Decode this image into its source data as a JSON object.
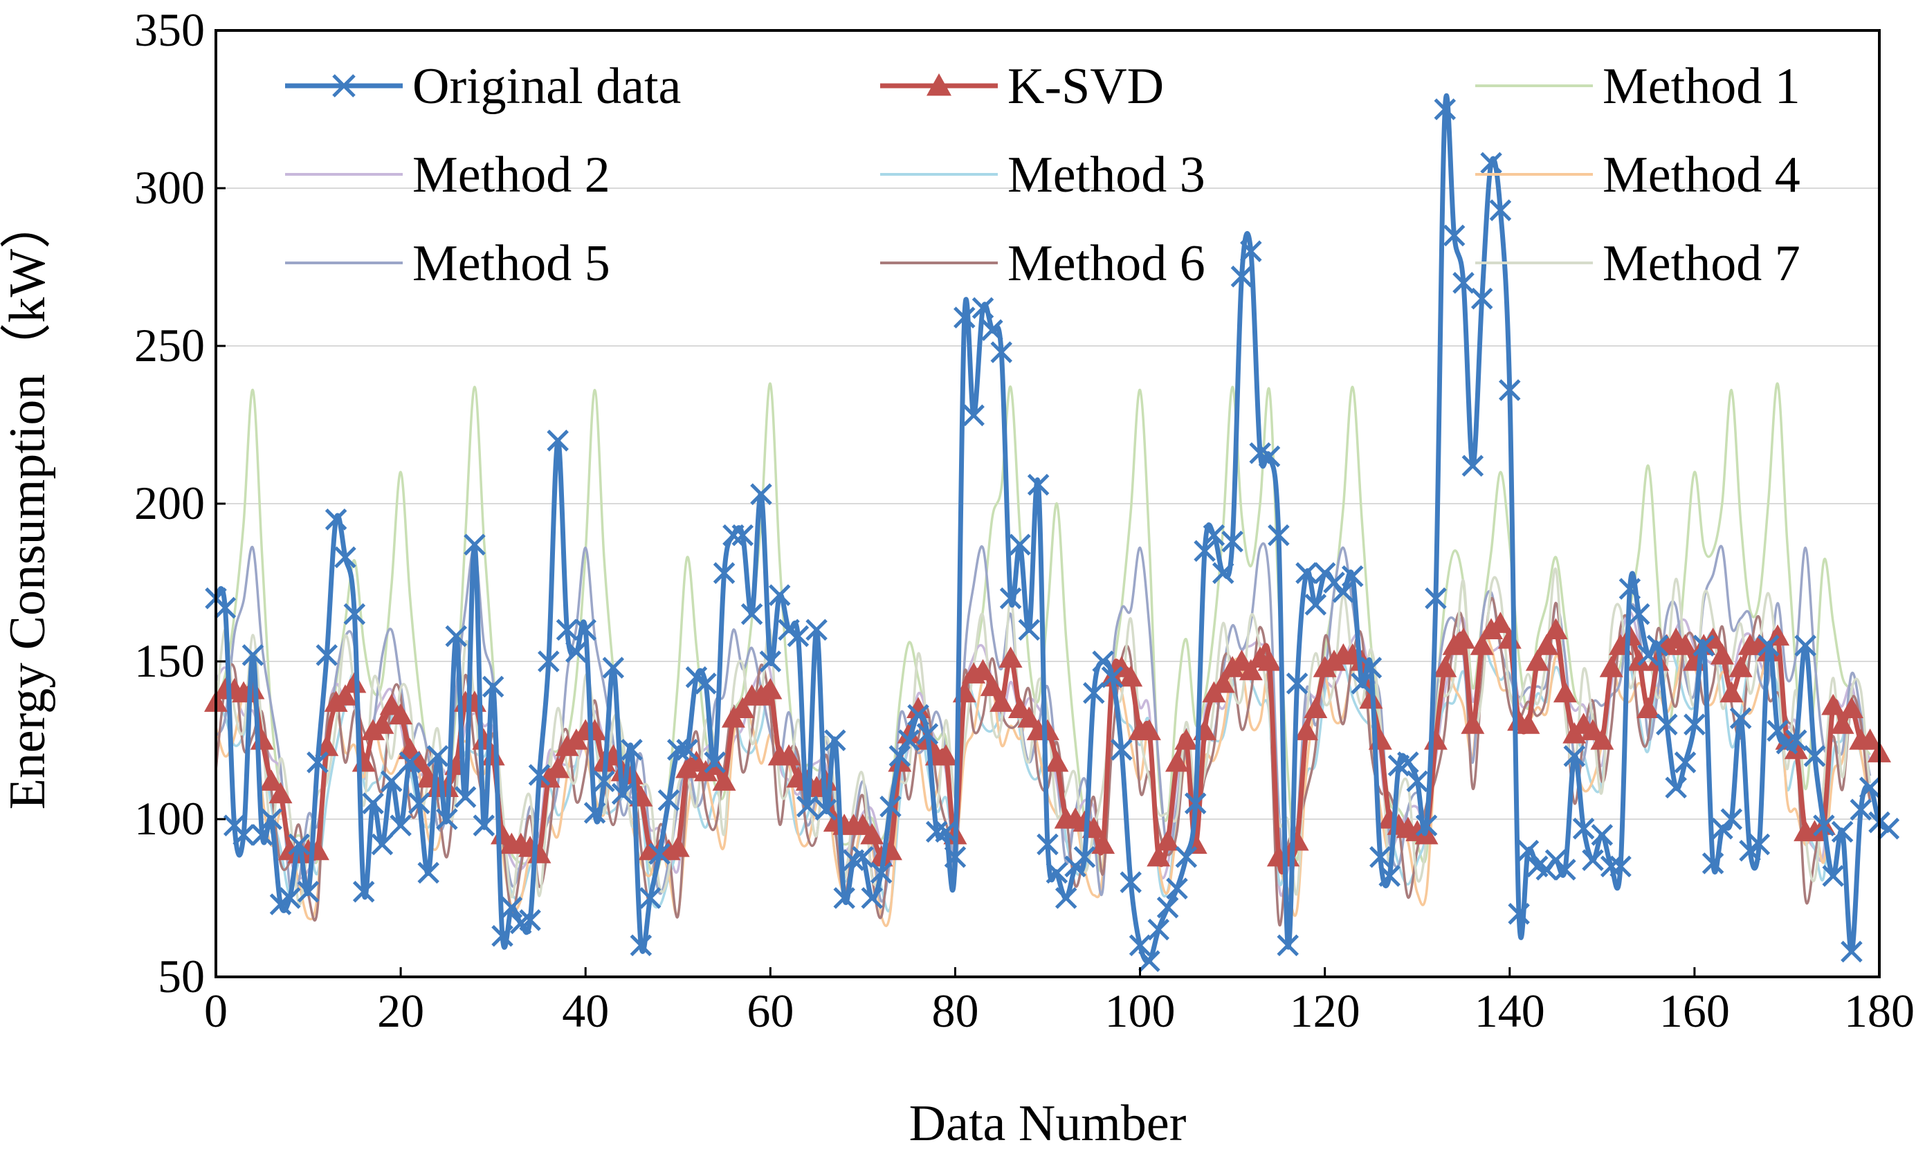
{
  "chart_data": {
    "type": "line",
    "title": "",
    "xlabel": "Data Number",
    "ylabel": "Energy Consumption（kW）",
    "xlim": [
      0,
      180
    ],
    "ylim": [
      50,
      350
    ],
    "xticks": [
      "0",
      "20",
      "40",
      "60",
      "80",
      "100",
      "120",
      "140",
      "160",
      "180"
    ],
    "yticks": [
      "50",
      "100",
      "150",
      "200",
      "250",
      "300",
      "350"
    ],
    "grid": "horizontal",
    "legend_position": "top, 3 columns",
    "series": [
      {
        "name": "Original data",
        "color": "#3f7cc0",
        "marker": "x",
        "values": [
          170,
          167,
          98,
          95,
          152,
          95,
          100,
          73,
          75,
          92,
          77,
          118,
          152,
          195,
          183,
          165,
          77,
          105,
          92,
          112,
          98,
          118,
          105,
          83,
          120,
          100,
          158,
          107,
          187,
          98,
          142,
          63,
          72,
          67,
          68,
          114,
          150,
          220,
          160,
          153,
          160,
          102,
          112,
          148,
          108,
          122,
          60,
          75,
          89,
          106,
          122,
          122,
          145,
          143,
          118,
          178,
          190,
          190,
          165,
          203,
          150,
          171,
          160,
          158,
          104,
          160,
          103,
          125,
          75,
          87,
          88,
          75,
          83,
          104,
          120,
          125,
          133,
          127,
          96,
          96,
          88,
          259,
          228,
          262,
          255,
          248,
          170,
          187,
          160,
          206,
          92,
          83,
          75,
          85,
          88,
          140,
          150,
          145,
          122,
          80,
          60,
          55,
          65,
          72,
          78,
          88,
          105,
          185,
          190,
          178,
          188,
          272,
          280,
          216,
          215,
          190,
          60,
          143,
          178,
          168,
          178,
          175,
          172,
          177,
          143,
          148,
          88,
          82,
          117,
          118,
          112,
          98,
          170,
          325,
          285,
          270,
          212,
          265,
          308,
          293,
          236,
          70,
          90,
          85,
          84,
          87,
          84,
          120,
          97,
          87,
          95,
          85,
          85,
          173,
          165,
          152,
          155,
          130,
          110,
          118,
          130,
          155,
          86,
          97,
          100,
          132,
          90,
          92,
          155,
          128,
          124,
          125,
          155,
          120,
          98,
          82,
          96,
          58,
          103,
          110,
          99,
          97
        ]
      },
      {
        "name": "K-SVD",
        "color": "#c0504d",
        "marker": "triangle",
        "values": [
          137,
          141,
          141,
          140,
          141,
          125,
          112,
          108,
          90,
          89,
          90,
          90,
          123,
          137,
          139,
          143,
          118,
          128,
          130,
          136,
          133,
          122,
          118,
          113,
          110,
          110,
          117,
          137,
          137,
          125,
          120,
          95,
          92,
          92,
          91,
          89,
          113,
          116,
          123,
          125,
          128,
          128,
          118,
          120,
          115,
          114,
          107,
          90,
          90,
          90,
          91,
          116,
          118,
          115,
          117,
          112,
          132,
          135,
          139,
          139,
          141,
          120,
          120,
          113,
          112,
          110,
          112,
          99,
          98,
          98,
          98,
          95,
          88,
          90,
          118,
          127,
          135,
          125,
          120,
          120,
          95,
          140,
          146,
          147,
          142,
          137,
          151,
          135,
          132,
          128,
          128,
          118,
          100,
          100,
          99,
          97,
          92,
          145,
          148,
          145,
          128,
          128,
          88,
          93,
          118,
          125,
          92,
          128,
          140,
          143,
          148,
          150,
          147,
          151,
          150,
          88,
          88,
          93,
          128,
          135,
          148,
          150,
          152,
          152,
          150,
          138,
          125,
          100,
          98,
          97,
          96,
          95,
          125,
          148,
          155,
          157,
          130,
          155,
          160,
          162,
          157,
          131,
          130,
          150,
          155,
          160,
          140,
          127,
          130,
          128,
          125,
          148,
          155,
          158,
          150,
          135,
          150,
          155,
          157,
          155,
          150,
          155,
          157,
          152,
          140,
          148,
          155,
          155,
          153,
          158,
          125,
          122,
          96,
          96,
          98,
          136,
          130,
          135,
          125,
          125,
          121
        ]
      },
      {
        "name": "Method 1",
        "color": "#c9dfb4",
        "peaks": [
          [
            4,
            236
          ],
          [
            15,
            182
          ],
          [
            20,
            210
          ],
          [
            28,
            237
          ],
          [
            41,
            236
          ],
          [
            51,
            183
          ],
          [
            60,
            238
          ],
          [
            75,
            156
          ],
          [
            84,
            185
          ],
          [
            86,
            237
          ],
          [
            91,
            200
          ],
          [
            100,
            236
          ],
          [
            105,
            157
          ],
          [
            110,
            237
          ],
          [
            114,
            236
          ],
          [
            123,
            237
          ],
          [
            134,
            185
          ],
          [
            139,
            210
          ],
          [
            145,
            183
          ],
          [
            157,
            110
          ],
          [
            155,
            212
          ],
          [
            160,
            210
          ],
          [
            164,
            236
          ],
          [
            169,
            238
          ],
          [
            174,
            182
          ]
        ],
        "base": 128
      },
      {
        "name": "Method 2",
        "color": "#c8b8db",
        "base": 128
      },
      {
        "name": "Method 3",
        "color": "#a8d8e8",
        "base": 115
      },
      {
        "name": "Method 4",
        "color": "#f8c99a",
        "base": 112
      },
      {
        "name": "Method 5",
        "color": "#9ba6c8",
        "peaks": [
          [
            4,
            186
          ],
          [
            14,
            158
          ],
          [
            19,
            160
          ],
          [
            28,
            186
          ],
          [
            40,
            186
          ],
          [
            56,
            160
          ],
          [
            83,
            186
          ],
          [
            100,
            186
          ],
          [
            113,
            186
          ],
          [
            122,
            186
          ],
          [
            133,
            160
          ],
          [
            163,
            186
          ],
          [
            172,
            186
          ]
        ],
        "base": 128
      },
      {
        "name": "Method 6",
        "color": "#a97c7c",
        "base": 118
      },
      {
        "name": "Method 7",
        "color": "#d6dccb",
        "base": 130
      }
    ]
  }
}
